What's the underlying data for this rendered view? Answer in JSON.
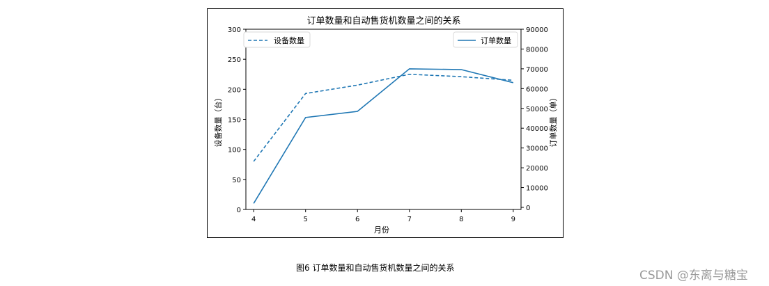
{
  "chart_data": {
    "type": "line",
    "title": "订单数量和自动售货机数量之间的关系",
    "xlabel": "月份",
    "ylabel": "设备数量（台）",
    "ylabel_right": "订单数量（单）",
    "x": [
      4,
      5,
      6,
      7,
      8,
      9
    ],
    "xticks": [
      "4",
      "5",
      "6",
      "7",
      "8",
      "9"
    ],
    "ylim": [
      0,
      300
    ],
    "yticks": [
      "0",
      "50",
      "100",
      "150",
      "200",
      "250",
      "300"
    ],
    "ylim_right": [
      0,
      90000
    ],
    "yticks_right": [
      "0",
      "10000",
      "20000",
      "30000",
      "40000",
      "50000",
      "60000",
      "70000",
      "80000",
      "90000"
    ],
    "series": [
      {
        "name": "设备数量",
        "axis": "left",
        "style": "dashed",
        "color": "#1f77b4",
        "values": [
          80,
          193,
          207,
          225,
          221,
          215
        ]
      },
      {
        "name": "订单数量",
        "axis": "right",
        "style": "solid",
        "color": "#1f77b4",
        "values": [
          2000,
          45400,
          48500,
          70000,
          69600,
          63000
        ]
      }
    ],
    "legend": [
      {
        "label": "设备数量",
        "position": "upper left"
      },
      {
        "label": "订单数量",
        "position": "upper right"
      }
    ],
    "grid": false
  },
  "caption": "图6 订单数量和自动售货机数量之间的关系",
  "watermark": "CSDN @东离与糖宝"
}
